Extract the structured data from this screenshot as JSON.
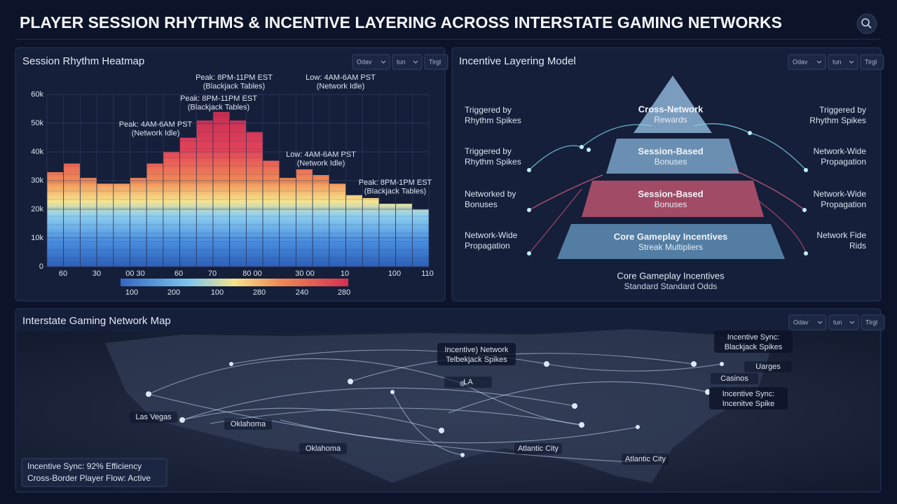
{
  "header": {
    "title": "PLAYER SESSION RHYTHMS & INCENTIVE LAYERING ACROSS INTERSTATE GAMING NETWORKS"
  },
  "heatmap": {
    "title": "Session Rhythm Heatmap",
    "controls": [
      "Odav",
      "tun",
      "Tirgl"
    ],
    "ylim": [
      0,
      60000
    ],
    "yticks": [
      0,
      {
        "value": 10000,
        "label": "10k"
      },
      {
        "value": 20000,
        "label": "20k"
      },
      {
        "value": 30000,
        "label": "30k"
      },
      {
        "value": 40000,
        "label": "40k"
      },
      {
        "value": 50000,
        "label": "50k"
      },
      {
        "value": 60000,
        "label": "60k"
      }
    ],
    "values": [
      33000,
      36000,
      31000,
      29000,
      29000,
      31000,
      36000,
      40000,
      45000,
      51000,
      54000,
      51000,
      47000,
      37000,
      31000,
      34000,
      32000,
      29000,
      25000,
      24000,
      22000,
      22000,
      20000
    ],
    "xlabels": [
      "60",
      "30",
      "00 30",
      "60",
      "70",
      "80 00",
      "30 00",
      "10",
      "100",
      "110"
    ],
    "colorbar": [
      100,
      200,
      100,
      280,
      240,
      280
    ],
    "annotations": [
      [
        "Peak: 8PM-11PM EST",
        "(Blackjack Tables)"
      ],
      [
        "Low: 4AM-6AM PST",
        "(Network Idle)"
      ],
      [
        "Peak: 8PM-11PM EST",
        "(Blackjack Tables)"
      ],
      [
        "Peak: 4AM-6AM PST",
        "(Network Idle)"
      ],
      [
        "Low: 4AM-6AM PST",
        "(Network Idle)"
      ],
      [
        "Peak: 8PM-1PM EST",
        "(Blackjack Tables)"
      ]
    ]
  },
  "pyramid": {
    "title": "Incentive Layering Model",
    "controls": [
      "Odav",
      "tun",
      "Tirgl"
    ],
    "levels": [
      [
        "Cross-Network",
        "Rewards"
      ],
      [
        "Session-Based",
        "Bonuses"
      ],
      [
        "Session-Based",
        "Bonuses"
      ],
      [
        "Core Gameplay Incentives",
        "Streak Multipliers"
      ]
    ],
    "base": [
      "Core Gameplay Incentives",
      "Standard Standard Odds"
    ],
    "left_labels": [
      [
        "Triggered by",
        "Rhythm Spikes"
      ],
      [
        "Triggered by",
        "Rhythm Spikes"
      ],
      [
        "Networked by",
        "Bonuses"
      ],
      [
        "Network-Wide",
        "Propagation"
      ]
    ],
    "right_labels": [
      [
        "Triggered by",
        "Rhythm Spikes"
      ],
      [
        "Network-Wide",
        "Propagation"
      ],
      [
        "Network-Wide",
        "Propagation"
      ],
      [
        "Network Fide",
        "Rids"
      ]
    ]
  },
  "map": {
    "title": "Interstate Gaming Network Map",
    "controls": [
      "Odav",
      "tun",
      "Tirgl"
    ],
    "places": [
      "Las Vegas",
      "Oklahoma",
      "Oklahoma",
      "Atlantic City",
      "Atlantic City",
      "Uarges",
      "Casinos",
      "LA"
    ],
    "callouts": [
      [
        "Incentive) Network",
        "Telbekjack Spikes"
      ],
      [
        "Incentive Sync:",
        "Blackjack Spikes"
      ],
      [
        "Incentive Sync:",
        "Incenitve Spike"
      ]
    ],
    "status": [
      "Incentive Sync: 92% Efficiency",
      "Cross-Border Player Flow: Active"
    ]
  }
}
